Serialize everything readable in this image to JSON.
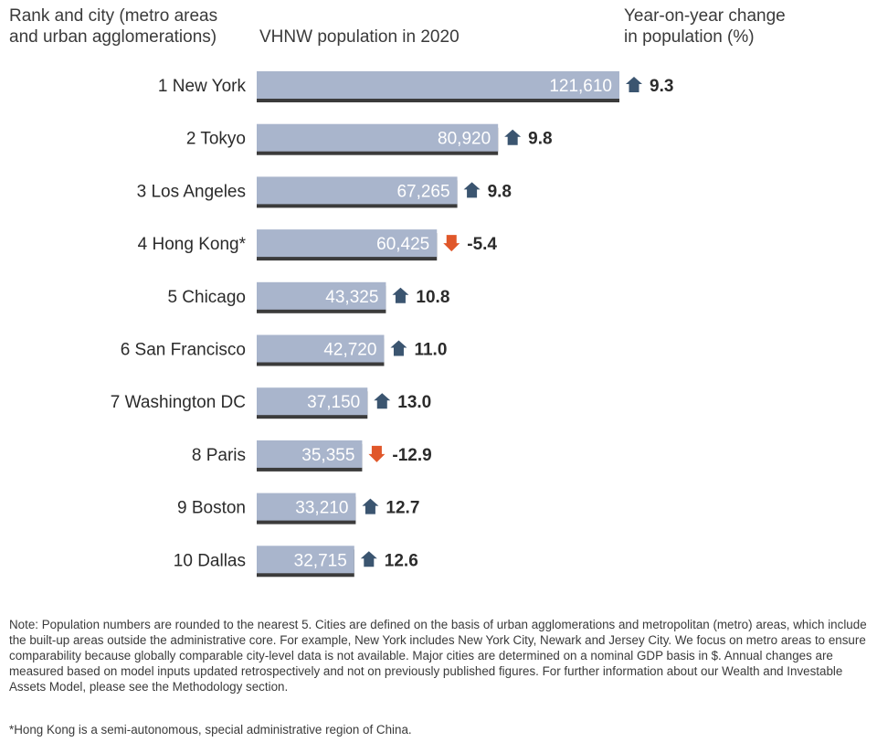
{
  "header": {
    "rank_label": "Rank and city (metro areas\nand urban agglomerations)",
    "value_label": "VHNW population in 2020",
    "change_label": "Year-on-year change\nin population (%)"
  },
  "chart_data": {
    "type": "bar",
    "orientation": "horizontal",
    "categories": [
      "1 New York",
      "2 Tokyo",
      "3 Los Angeles",
      "4 Hong Kong*",
      "5 Chicago",
      "6 San Francisco",
      "7 Washington DC",
      "8 Paris",
      "9 Boston",
      "10 Dallas"
    ],
    "values": [
      121610,
      80920,
      67265,
      60425,
      43325,
      42720,
      37150,
      35355,
      33210,
      32715
    ],
    "value_labels": [
      "121,610",
      "80,920",
      "67,265",
      "60,425",
      "43,325",
      "42,720",
      "37,150",
      "35,355",
      "33,210",
      "32,715"
    ],
    "changes": [
      9.3,
      9.8,
      9.8,
      -5.4,
      10.8,
      11.0,
      13.0,
      -12.9,
      12.7,
      12.6
    ],
    "change_labels": [
      "9.3",
      "9.8",
      "9.8",
      "-5.4",
      "10.8",
      "11.0",
      "13.0",
      "-12.9",
      "12.7",
      "12.6"
    ],
    "xlim": [
      0,
      121610
    ],
    "grid": false,
    "colors": {
      "bar": "#a9b5cc",
      "bar_shadow": "#3b3b3b",
      "up_arrow": "#3b5570",
      "down_arrow": "#e0572a",
      "bar_text": "#ffffff"
    }
  },
  "notes": {
    "text": "Note: Population numbers are rounded to the nearest 5. Cities are defined on the basis of urban agglomerations and metropolitan (metro) areas, which include the built-up areas outside the administrative core. For example, New York includes New York City, Newark and Jersey City. We focus on metro areas to ensure comparability because globally comparable city-level data is not available. Major cities are determined on a nominal GDP basis in $. Annual changes are measured based on model inputs updated retrospectively and not on previously published figures. For further information about our Wealth and Investable Assets Model, please see the Methodology section.",
    "footnote": "*Hong Kong is a semi-autonomous, special administrative region of China."
  }
}
